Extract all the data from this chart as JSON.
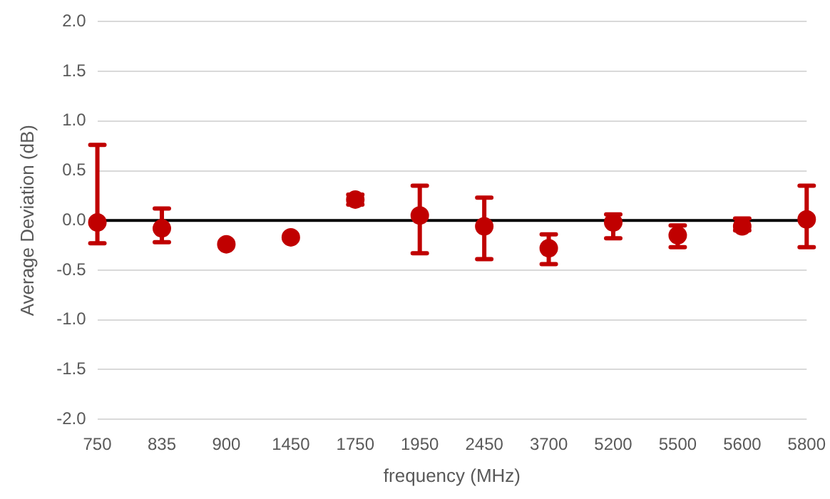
{
  "chart_data": {
    "type": "scatter",
    "xlabel": "frequency (MHz)",
    "ylabel": "Average Deviation (dB)",
    "categories": [
      "750",
      "835",
      "900",
      "1450",
      "1750",
      "1950",
      "2450",
      "3700",
      "5200",
      "5500",
      "5600",
      "5800"
    ],
    "series": [
      {
        "color": "#c00000",
        "values": [
          -0.02,
          -0.08,
          -0.24,
          -0.17,
          0.21,
          0.05,
          -0.06,
          -0.28,
          -0.02,
          -0.15,
          -0.06,
          0.01
        ],
        "errors": [
          [
            -0.23,
            0.76
          ],
          [
            -0.22,
            0.12
          ],
          null,
          null,
          [
            0.16,
            0.26
          ],
          [
            -0.33,
            0.35
          ],
          [
            -0.39,
            0.23
          ],
          [
            -0.44,
            -0.14
          ],
          [
            -0.18,
            0.06
          ],
          [
            -0.27,
            -0.05
          ],
          [
            -0.1,
            0.02
          ],
          [
            -0.27,
            0.35
          ]
        ]
      }
    ],
    "ylim": [
      -2,
      2
    ],
    "yticks": [
      {
        "value": -2,
        "label": "-2.0"
      },
      -1.5,
      {
        "value": -1,
        "label": "-1.0"
      },
      -0.5,
      {
        "value": 0,
        "label": "0.0"
      },
      0.5,
      {
        "value": 1,
        "label": "1.0"
      },
      1.5,
      {
        "value": 2,
        "label": "2.0"
      }
    ],
    "grid": "y",
    "marker": "circle",
    "legend": false,
    "ref_lines": [
      {
        "axis": "y",
        "value": 0,
        "color": "#000000"
      }
    ]
  }
}
